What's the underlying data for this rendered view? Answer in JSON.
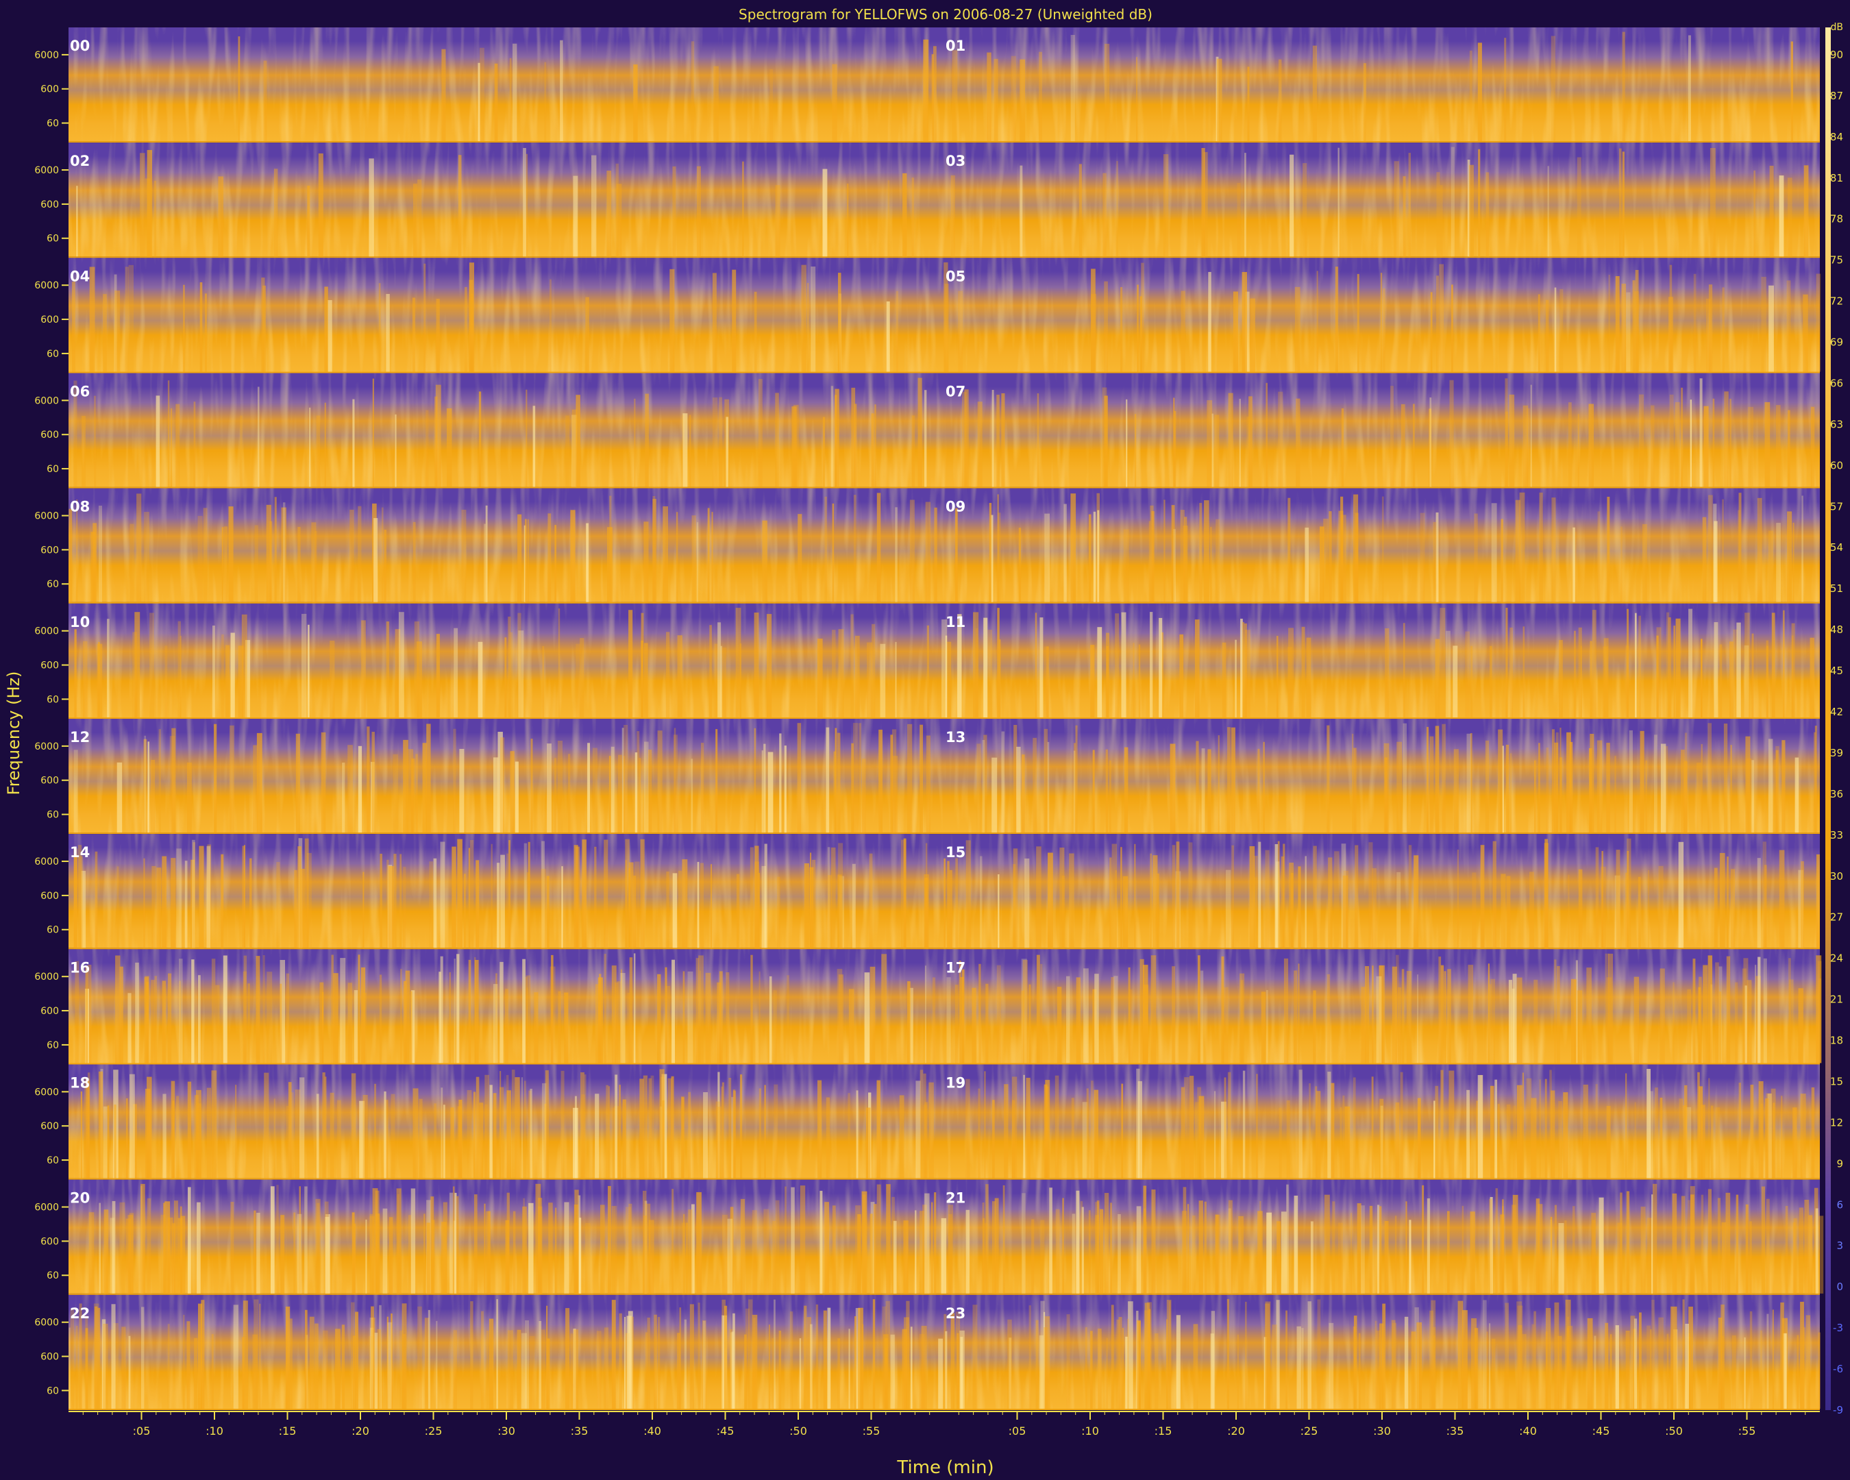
{
  "chart_data": {
    "type": "heatmap",
    "title": "Spectrogram for YELLOFWS on 2006-08-27 (Unweighted dB)",
    "xlabel": "Time (min)",
    "ylabel": "Frequency (Hz)",
    "x_tick_labels": [
      ":05",
      ":10",
      ":15",
      ":20",
      ":25",
      ":30",
      ":35",
      ":40",
      ":45",
      ":50",
      ":55"
    ],
    "y_tick_labels": [
      "6000",
      "600",
      "60"
    ],
    "rows": [
      {
        "left": "00",
        "right": "01"
      },
      {
        "left": "02",
        "right": "03"
      },
      {
        "left": "04",
        "right": "05"
      },
      {
        "left": "06",
        "right": "07"
      },
      {
        "left": "08",
        "right": "09"
      },
      {
        "left": "10",
        "right": "11"
      },
      {
        "left": "12",
        "right": "13"
      },
      {
        "left": "14",
        "right": "15"
      },
      {
        "left": "16",
        "right": "17"
      },
      {
        "left": "18",
        "right": "19"
      },
      {
        "left": "20",
        "right": "21"
      },
      {
        "left": "22",
        "right": "23"
      }
    ],
    "hours_per_row": 2,
    "minutes_per_hour": 60,
    "colorbar": {
      "unit": "dB",
      "range": [
        -9,
        92
      ],
      "tick_values": [
        90,
        87,
        84,
        81,
        78,
        75,
        72,
        69,
        66,
        63,
        60,
        57,
        54,
        51,
        48,
        45,
        42,
        39,
        36,
        33,
        30,
        27,
        24,
        21,
        18,
        15,
        12,
        9,
        6,
        3,
        0,
        -3,
        -6,
        -9
      ],
      "tick_labels": [
        "90",
        "87",
        "84",
        "81",
        "78",
        "75",
        "72",
        "69",
        "66",
        "63",
        "60",
        "57",
        "54",
        "51",
        "48",
        "45",
        "42",
        "39",
        "36",
        "33",
        "30",
        "27",
        "24",
        "21",
        "18",
        "15",
        "12",
        "9",
        "6",
        "3",
        "0",
        "-3",
        "-6",
        "-9"
      ]
    },
    "colors": {
      "background": "#1a0b3d",
      "low": "#5b3fa6",
      "mid": "#f2a40f",
      "high": "#fde8a0",
      "text": "#f2e14b"
    },
    "grid": false,
    "legend": "right"
  }
}
